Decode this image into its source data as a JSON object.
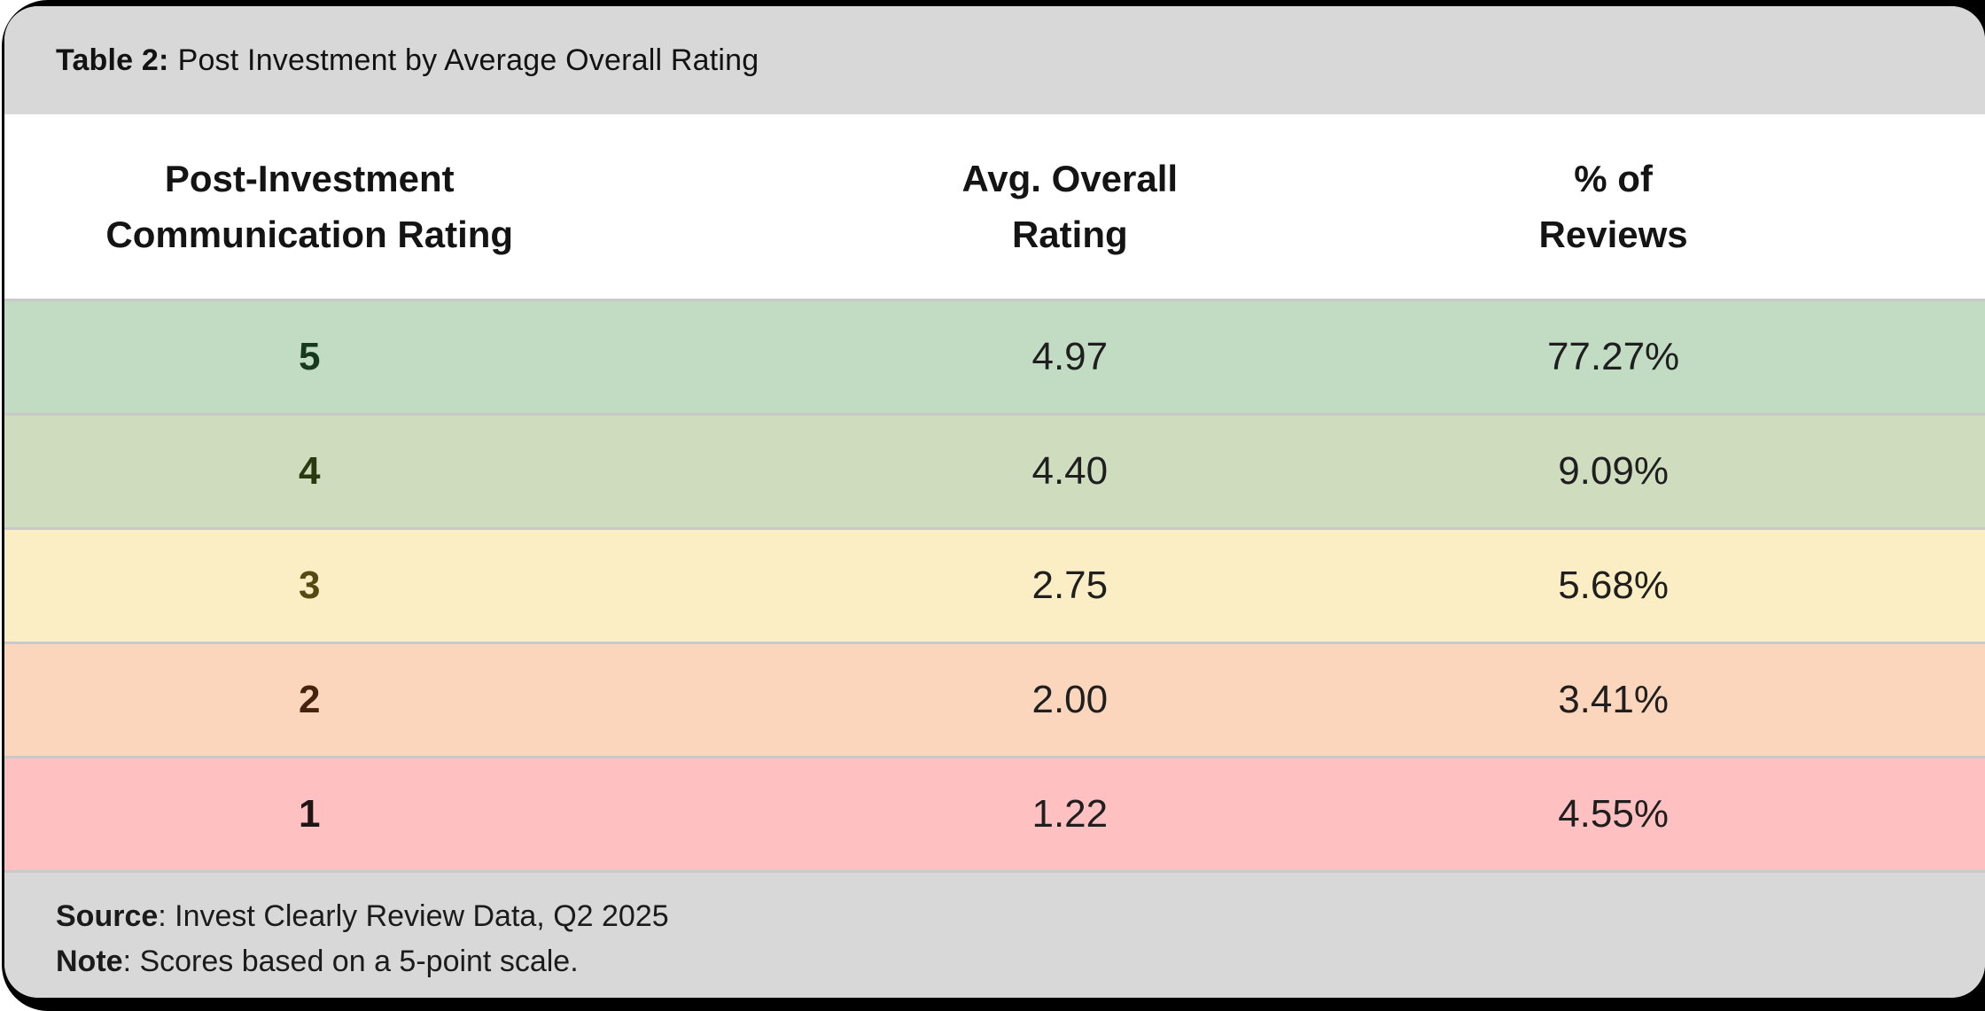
{
  "title": {
    "prefix": "Table 2:",
    "text": "Post Investment by Average Overall Rating"
  },
  "table": {
    "columns": [
      [
        "Post-Investment",
        "Communication Rating"
      ],
      [
        "Avg. Overall",
        "Rating"
      ],
      [
        "% of",
        "Reviews"
      ]
    ],
    "rows": [
      {
        "rating": "5",
        "avg": "4.97",
        "pct": "77.27%",
        "bg": "#c2dcc3",
        "rating_color": "#163a1e"
      },
      {
        "rating": "4",
        "avg": "4.40",
        "pct": "9.09%",
        "bg": "#cfdcbe",
        "rating_color": "#2a3a10"
      },
      {
        "rating": "3",
        "avg": "2.75",
        "pct": "5.68%",
        "bg": "#fbedc4",
        "rating_color": "#564a12"
      },
      {
        "rating": "2",
        "avg": "2.00",
        "pct": "3.41%",
        "bg": "#fcd6bc",
        "rating_color": "#46230e"
      },
      {
        "rating": "1",
        "avg": "1.22",
        "pct": "4.55%",
        "bg": "#ffc0c1",
        "rating_color": "#1f1515"
      }
    ]
  },
  "footer": {
    "source_label": "Source",
    "source_text": ": Invest Clearly Review Data, Q2 2025",
    "note_label": "Note",
    "note_text": ": Scores based on a 5-point scale."
  },
  "colors": {
    "card_background": "#d8d8d8",
    "header_background": "#ffffff",
    "separator": "#c9c9c9",
    "backdrop": "#000000",
    "value_text": "#1f1f1f"
  },
  "chart_data": {
    "type": "table",
    "title": "Table 2: Post Investment by Average Overall Rating",
    "columns": [
      "Post-Investment Communication Rating",
      "Avg. Overall Rating",
      "% of Reviews"
    ],
    "rows": [
      [
        "5",
        "4.97",
        "77.27%"
      ],
      [
        "4",
        "4.40",
        "9.09%"
      ],
      [
        "3",
        "2.75",
        "5.68%"
      ],
      [
        "2",
        "2.00",
        "3.41%"
      ],
      [
        "1",
        "1.22",
        "4.55%"
      ]
    ],
    "avg_overall_rating_values": [
      4.97,
      4.4,
      2.75,
      2.0,
      1.22
    ],
    "pct_of_reviews_values": [
      77.27,
      9.09,
      5.68,
      3.41,
      4.55
    ],
    "row_colors": [
      "#c2dcc3",
      "#cfdcbe",
      "#fbedc4",
      "#fcd6bc",
      "#ffc0c1"
    ],
    "source": "Invest Clearly Review Data, Q2 2025",
    "note": "Scores based on a 5-point scale."
  }
}
